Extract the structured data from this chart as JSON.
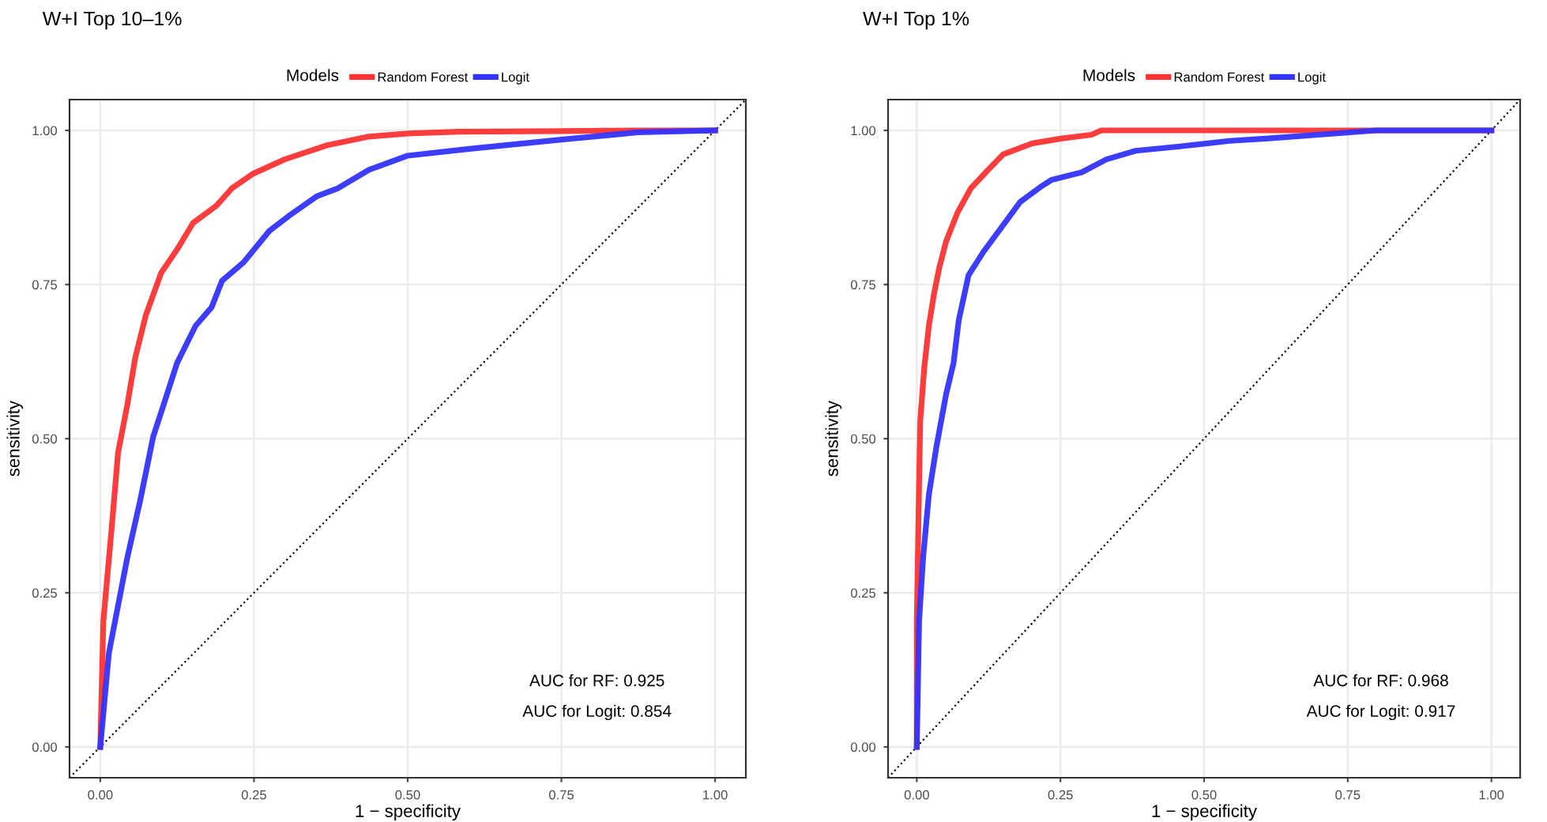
{
  "chart_data": [
    {
      "type": "line",
      "title": "W+I Top 10–1%",
      "xlabel": "1 − specificity",
      "ylabel": "sensitivity",
      "legend_title": "Models",
      "legend": "top",
      "grid": true,
      "line_style": "solid",
      "xlim": [
        -0.05,
        1.05
      ],
      "ylim": [
        -0.05,
        1.05
      ],
      "xticks": [
        {
          "value": 0,
          "label": "0.00"
        },
        {
          "value": 0.25,
          "label": "0.25"
        },
        {
          "value": 0.5,
          "label": "0.50"
        },
        {
          "value": 0.75,
          "label": "0.75"
        },
        {
          "value": 1,
          "label": "1.00"
        }
      ],
      "yticks": [
        {
          "value": 0,
          "label": "0.00"
        },
        {
          "value": 0.25,
          "label": "0.25"
        },
        {
          "value": 0.5,
          "label": "0.50"
        },
        {
          "value": 0.75,
          "label": "0.75"
        },
        {
          "value": 1,
          "label": "1.00"
        }
      ],
      "annotations": [
        "AUC for RF: 0.925",
        "AUC for Logit: 0.854"
      ],
      "series": [
        {
          "name": null,
          "color": "#000000",
          "line_style": "dotted",
          "x": [
            -0.05,
            1.05
          ],
          "values": [
            -0.05,
            1.05
          ]
        },
        {
          "name": "Random Forest",
          "color": "#ff3333",
          "x": [
            0,
            0.005,
            0.018,
            0.029,
            0.044,
            0.057,
            0.074,
            0.099,
            0.125,
            0.151,
            0.189,
            0.214,
            0.249,
            0.3,
            0.369,
            0.437,
            0.5,
            0.583,
            0.75,
            0.87,
            1
          ],
          "values": [
            0,
            0.204,
            0.349,
            0.478,
            0.555,
            0.632,
            0.7,
            0.769,
            0.807,
            0.85,
            0.878,
            0.906,
            0.93,
            0.953,
            0.976,
            0.99,
            0.995,
            0.998,
            0.999,
            1,
            1
          ]
        },
        {
          "name": "Logit",
          "color": "#3333ff",
          "x": [
            0,
            0.014,
            0.044,
            0.065,
            0.086,
            0.103,
            0.125,
            0.155,
            0.181,
            0.198,
            0.233,
            0.275,
            0.309,
            0.352,
            0.386,
            0.437,
            0.5,
            0.6,
            0.75,
            0.875,
            1
          ],
          "values": [
            0,
            0.152,
            0.307,
            0.4,
            0.503,
            0.555,
            0.623,
            0.683,
            0.713,
            0.756,
            0.786,
            0.837,
            0.863,
            0.893,
            0.906,
            0.936,
            0.959,
            0.97,
            0.985,
            0.997,
            1
          ]
        }
      ]
    },
    {
      "type": "line",
      "title": "W+I Top 1%",
      "xlabel": "1 − specificity",
      "ylabel": "sensitivity",
      "legend_title": "Models",
      "legend": "top",
      "grid": true,
      "line_style": "solid",
      "xlim": [
        -0.05,
        1.05
      ],
      "ylim": [
        -0.05,
        1.05
      ],
      "xticks": [
        {
          "value": 0,
          "label": "0.00"
        },
        {
          "value": 0.25,
          "label": "0.25"
        },
        {
          "value": 0.5,
          "label": "0.50"
        },
        {
          "value": 0.75,
          "label": "0.75"
        },
        {
          "value": 1,
          "label": "1.00"
        }
      ],
      "yticks": [
        {
          "value": 0,
          "label": "0.00"
        },
        {
          "value": 0.25,
          "label": "0.25"
        },
        {
          "value": 0.5,
          "label": "0.50"
        },
        {
          "value": 0.75,
          "label": "0.75"
        },
        {
          "value": 1,
          "label": "1.00"
        }
      ],
      "annotations": [
        "AUC for RF: 0.968",
        "AUC for Logit: 0.917"
      ],
      "series": [
        {
          "name": null,
          "color": "#000000",
          "line_style": "dotted",
          "x": [
            -0.05,
            1.05
          ],
          "values": [
            -0.05,
            1.05
          ]
        },
        {
          "name": "Random Forest",
          "color": "#ff3333",
          "x": [
            0,
            0,
            0.003,
            0.006,
            0.013,
            0.021,
            0.03,
            0.039,
            0.051,
            0.071,
            0.094,
            0.124,
            0.15,
            0.201,
            0.253,
            0.304,
            0.321,
            1
          ],
          "values": [
            0,
            0.204,
            0.375,
            0.529,
            0.615,
            0.683,
            0.735,
            0.777,
            0.82,
            0.867,
            0.906,
            0.936,
            0.961,
            0.979,
            0.987,
            0.993,
            1,
            1
          ]
        },
        {
          "name": "Logit",
          "color": "#3333ff",
          "x": [
            0,
            0.004,
            0.011,
            0.021,
            0.034,
            0.051,
            0.064,
            0.073,
            0.09,
            0.116,
            0.15,
            0.18,
            0.218,
            0.235,
            0.287,
            0.33,
            0.381,
            0.458,
            0.544,
            0.612,
            0.8,
            1
          ],
          "values": [
            0,
            0.204,
            0.307,
            0.409,
            0.486,
            0.572,
            0.623,
            0.692,
            0.765,
            0.803,
            0.846,
            0.884,
            0.91,
            0.92,
            0.932,
            0.953,
            0.967,
            0.974,
            0.983,
            0.987,
            1,
            1
          ]
        }
      ]
    }
  ]
}
